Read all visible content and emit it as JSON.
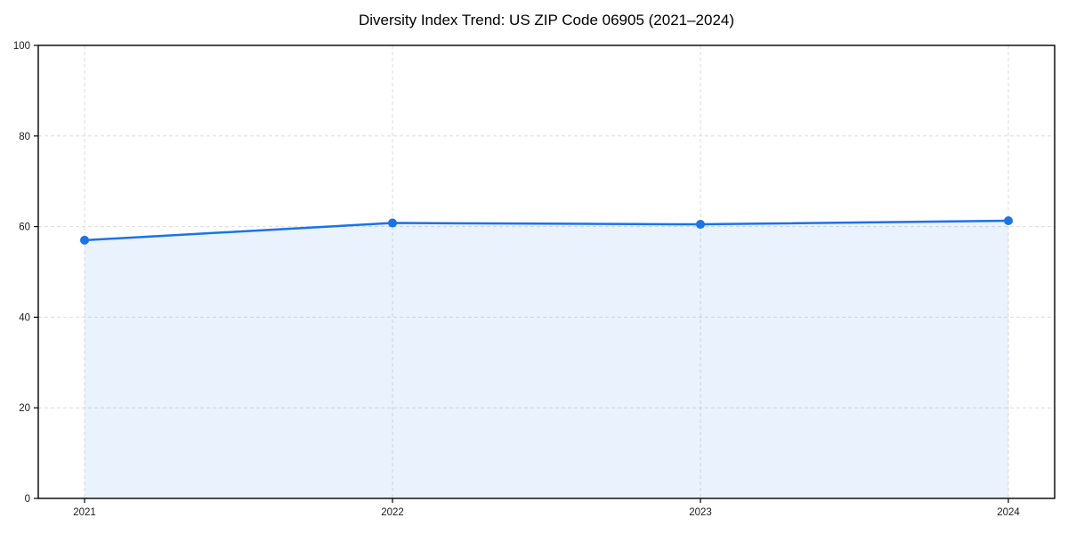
{
  "chart_data": {
    "type": "line",
    "title": "Diversity Index Trend: US ZIP Code 06905 (2021–2024)",
    "x": [
      "2021",
      "2022",
      "2023",
      "2024"
    ],
    "series": [
      {
        "name": "Diversity Index",
        "values": [
          57.0,
          60.8,
          60.5,
          61.3
        ]
      }
    ],
    "xlabel": "",
    "ylabel": "",
    "ylim": [
      0,
      100
    ],
    "yticks": [
      0,
      20,
      40,
      60,
      80,
      100
    ],
    "grid": "dashed",
    "legend": "none",
    "marker": "circle",
    "area_fill": true
  },
  "colors": {
    "line": "#1a73e8",
    "marker": "#1a73e8",
    "fill": "#1a73e8",
    "fill_opacity": 0.09,
    "grid": "#dcdcdc",
    "spine": "#000000",
    "tick_text": "#1a1a1a",
    "background": "#ffffff"
  }
}
